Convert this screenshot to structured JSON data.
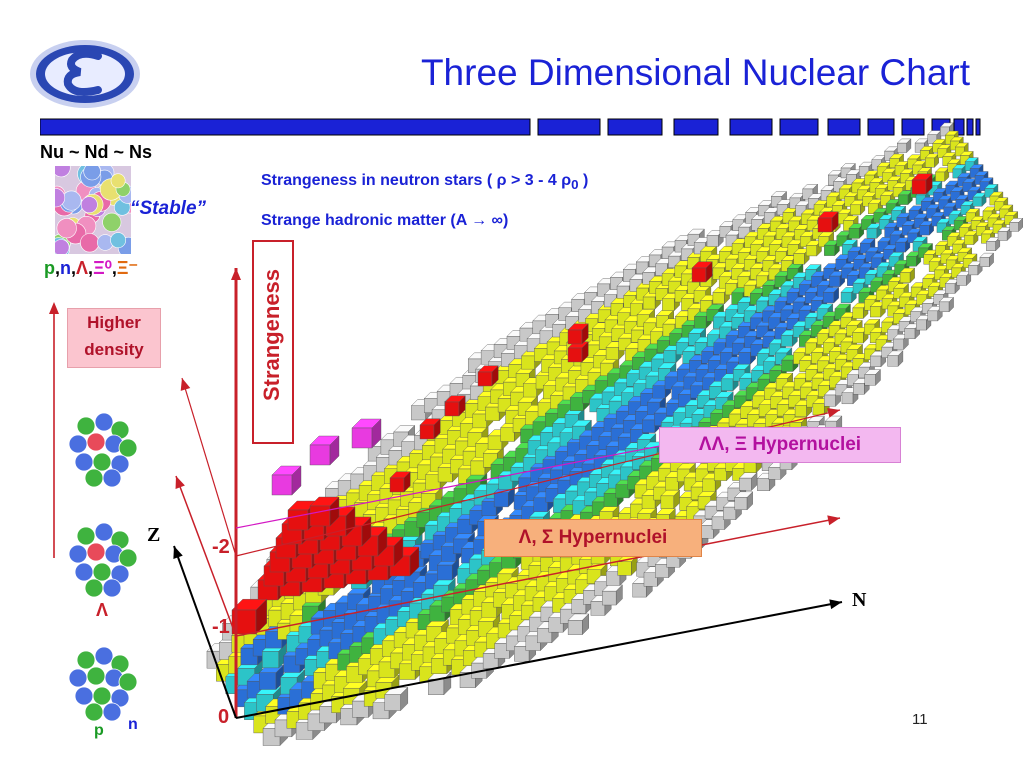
{
  "title": "Three Dimensional Nuclear Chart",
  "quark_line": "Nu ~ Nd ~ Ns",
  "stable_label": "“Stable”",
  "particles": [
    {
      "text": "p",
      "color": "#1a9a24"
    },
    {
      "text": ",",
      "color": "#000000"
    },
    {
      "text": "n",
      "color": "#1a22d6"
    },
    {
      "text": ",",
      "color": "#000000"
    },
    {
      "text": "Λ",
      "color": "#c8202a"
    },
    {
      "text": ",",
      "color": "#000000"
    },
    {
      "text": "Ξ⁰",
      "color": "#d318c4"
    },
    {
      "text": ",",
      "color": "#000000"
    },
    {
      "text": "Ξ⁻",
      "color": "#e06a10"
    }
  ],
  "density_label": [
    "Higher",
    "density"
  ],
  "strangeness_label": "Strangeness",
  "neutron_star_line": "Strangeness in neutron stars ( ρ > 3 - 4 ρ",
  "neutron_star_sub": "0",
  "neutron_star_close": " )",
  "hadronic_matter_line": "Strange hadronic matter (A → ∞)",
  "ll_hypernuclei": "ΛΛ, Ξ Hypernuclei",
  "l_hypernuclei": "Λ, Σ Hypernuclei",
  "axis_labels": {
    "z": "Z",
    "n": "N"
  },
  "strangeness_levels": [
    "-2",
    "-1",
    "0"
  ],
  "nucleus_lambda_label": "Λ",
  "nucleon_labels": {
    "p": "p",
    "n": "n"
  },
  "page_number": "11",
  "colors": {
    "title_blue": "#1a22d6",
    "red": "#c8202a",
    "magenta": "#d318c4",
    "cube_yellow": "#d9e41c",
    "cube_blue": "#2a6fd6",
    "cube_cyan": "#2cc4c8",
    "cube_green": "#3fb33f",
    "cube_red": "#e51010",
    "cube_gray": "#c8c8c8"
  },
  "icons": [
    "epsilon-logo",
    "quark-soup-image",
    "nucleus-icon",
    "hypernucleus-icon"
  ]
}
